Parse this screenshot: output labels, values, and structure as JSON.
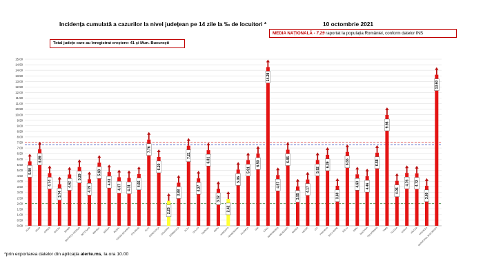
{
  "header": {
    "title": "Incidența cumulată a cazurilor la nivel județean pe 14 zile la ‰ de locuitori *",
    "date": "10 octombrie 2021"
  },
  "national_box": {
    "label": "MEDIA NAȚIONALĂ",
    "value": "- 7.29",
    "note": "raportat la populația României, conform datelor INS"
  },
  "increase_box": {
    "text": "Total județe care au înregistrat creștere:  41 și Mun. București"
  },
  "footnote": {
    "prefix": "*prin exportarea datelor din aplicația ",
    "app": "alerte.ms",
    "suffix": ", la ora 10.00"
  },
  "colors": {
    "bar": "#e41414",
    "bar_highlight": "#ffff33",
    "arrow": "#b81010",
    "ref_dashed_red": "#e06060",
    "ref_dashed_blue": "#3a50c0",
    "ref_dashed_green": "#2e7d32",
    "grid": "#d9d9d9"
  },
  "chart_data": {
    "type": "bar",
    "title": "Incidența cumulată a cazurilor la nivel județean pe 14 zile la ‰ de locuitori *",
    "xlabel": "",
    "ylabel": "",
    "ylim": [
      0,
      15
    ],
    "y_ticks": [
      "0.00",
      "0.50",
      "1.00",
      "1.50",
      "2.00",
      "2.50",
      "3.00",
      "3.50",
      "4.00",
      "4.50",
      "5.00",
      "5.50",
      "6.00",
      "6.50",
      "7.00",
      "7.50",
      "8.00",
      "8.50",
      "9.00",
      "9.50",
      "10.00",
      "10.50",
      "11.00",
      "11.50",
      "12.00",
      "12.50",
      "13.00",
      "13.50",
      "14.00",
      "14.50",
      "15.00"
    ],
    "grid": true,
    "categories": [
      "ALBA",
      "ARAD",
      "ARGEȘ",
      "BACĂU",
      "BIHOR",
      "BISTRIȚA-NĂSĂUD",
      "BOTOȘANI",
      "BRAȘOV",
      "BRĂILA",
      "BUZĂU",
      "CARAȘ-SEVERIN",
      "CĂLĂRAȘI",
      "CLUJ",
      "CONSTANȚA",
      "COVASNA",
      "DÂMBOVIȚA",
      "DOLJ",
      "GALAȚI",
      "GIURGIU",
      "GORJ",
      "HARGHITA",
      "HUNEDOARA",
      "IALOMIȚA",
      "IAȘI",
      "ILFOV",
      "MARAMUREȘ",
      "MEHEDINȚI",
      "MUREȘ",
      "NEAMȚ",
      "OLT",
      "PRAHOVA",
      "SATU MARE",
      "SĂLAJ",
      "SIBIU",
      "SUCEAVA",
      "TELEORMAN",
      "TIMIȘ",
      "TULCEA",
      "VASLUI",
      "VÂLCEA",
      "VRANCEA",
      "MUNICIPIUL BUCUREȘTI"
    ],
    "values": [
      5.8,
      6.89,
      4.74,
      3.74,
      4.62,
      5.29,
      4.19,
      5.68,
      4.83,
      4.37,
      4.31,
      4.66,
      7.76,
      6.2,
      2.25,
      3.88,
      7.21,
      4.27,
      6.81,
      3.32,
      2.42,
      5.06,
      5.91,
      6.5,
      14.29,
      4.57,
      6.85,
      3.55,
      4.17,
      5.92,
      6.39,
      3.6,
      6.65,
      4.63,
      4.46,
      6.58,
      9.98,
      4.05,
      4.76,
      4.72,
      3.6,
      13.6
    ],
    "value_labels": [
      "5.80",
      "6.89",
      "4.74",
      "3.74",
      "4.62",
      "5.29",
      "4.19",
      "5.68",
      "4.83",
      "4.37",
      "4.31",
      "4.66",
      "7.76",
      "6.20",
      "2.25",
      "3.88",
      "7.21",
      "4.27",
      "6.81",
      "3.32",
      "2.42",
      "5.06",
      "5.91",
      "6.50",
      "14.29",
      "4.57",
      "6.85",
      "3.55",
      "4.17",
      "5.92",
      "6.39",
      "3.60",
      "6.65",
      "4.63",
      "4.46",
      "6.58",
      "9.98",
      "4.05",
      "4.76",
      "4.72",
      "3.60",
      "13.60"
    ],
    "highlighted": [
      "COVASNA",
      "HARGHITA"
    ],
    "reference_lines": [
      {
        "value": 7.5,
        "style": "dashed",
        "color": "#e06060"
      },
      {
        "value": 7.29,
        "style": "dashed",
        "color": "#3a50c0"
      },
      {
        "value": 2.0,
        "style": "dashed",
        "color": "#2e7d32"
      }
    ],
    "markers": "arrow-up above every bar"
  }
}
